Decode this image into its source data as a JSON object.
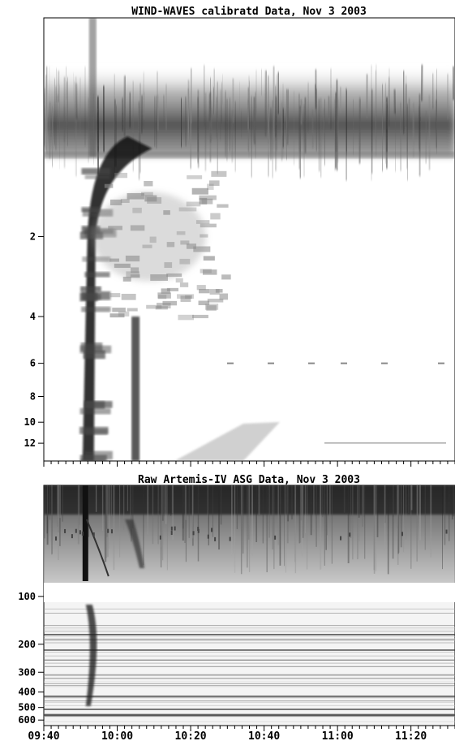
{
  "chart_data": [
    {
      "type": "heatmap",
      "title": "WIND-WAVES calibratd Data, Nov  3 2003",
      "ylabel": "",
      "y_scale": "log",
      "y_ticks": [
        "2",
        "4",
        "6",
        "8",
        "10",
        "12"
      ],
      "y_tick_values": [
        2,
        4,
        6,
        8,
        10,
        12
      ],
      "y_range": [
        0.3,
        14
      ],
      "colormap": "grayscale (darker = more intense)",
      "features": [
        {
          "name": "dark band at top of spectrum",
          "x_start": "09:40",
          "x_end": "11:32",
          "y_from": 0.45,
          "y_to": 1.0
        },
        {
          "name": "intense drifting burst",
          "x_start": "09:51",
          "x_end": "09:54",
          "y_from": 1.0,
          "y_to": 14
        },
        {
          "name": "second drifting burst",
          "x_start": "10:03",
          "x_end": "10:05",
          "y_from": 4,
          "y_to": 14
        }
      ]
    },
    {
      "type": "heatmap",
      "title": "Raw  Artemis-IV  ASG Data, Nov  3 2003",
      "ylabel": "",
      "y_scale": "log",
      "y_ticks": [
        "100",
        "200",
        "300",
        "400",
        "500",
        "600"
      ],
      "y_tick_values": [
        100,
        200,
        300,
        400,
        500,
        600
      ],
      "y_range": [
        20,
        650
      ],
      "colormap": "grayscale (darker = more intense)",
      "x_ticks": [
        "09:40",
        "10:00",
        "10:20",
        "10:40",
        "11:00",
        "11:20"
      ],
      "x_range": [
        "09:40",
        "11:32"
      ],
      "features": [
        {
          "name": "dark band at top of spectrum",
          "x_start": "09:40",
          "x_end": "11:32",
          "y_from": 20,
          "y_to": 30
        },
        {
          "name": "intense drifting burst",
          "x_start": "09:51",
          "x_end": "09:55",
          "y_from": 20,
          "y_to": 560
        },
        {
          "name": "second burst",
          "x_start": "10:03",
          "x_end": "10:07",
          "y_from": 20,
          "y_to": 45
        }
      ]
    }
  ]
}
